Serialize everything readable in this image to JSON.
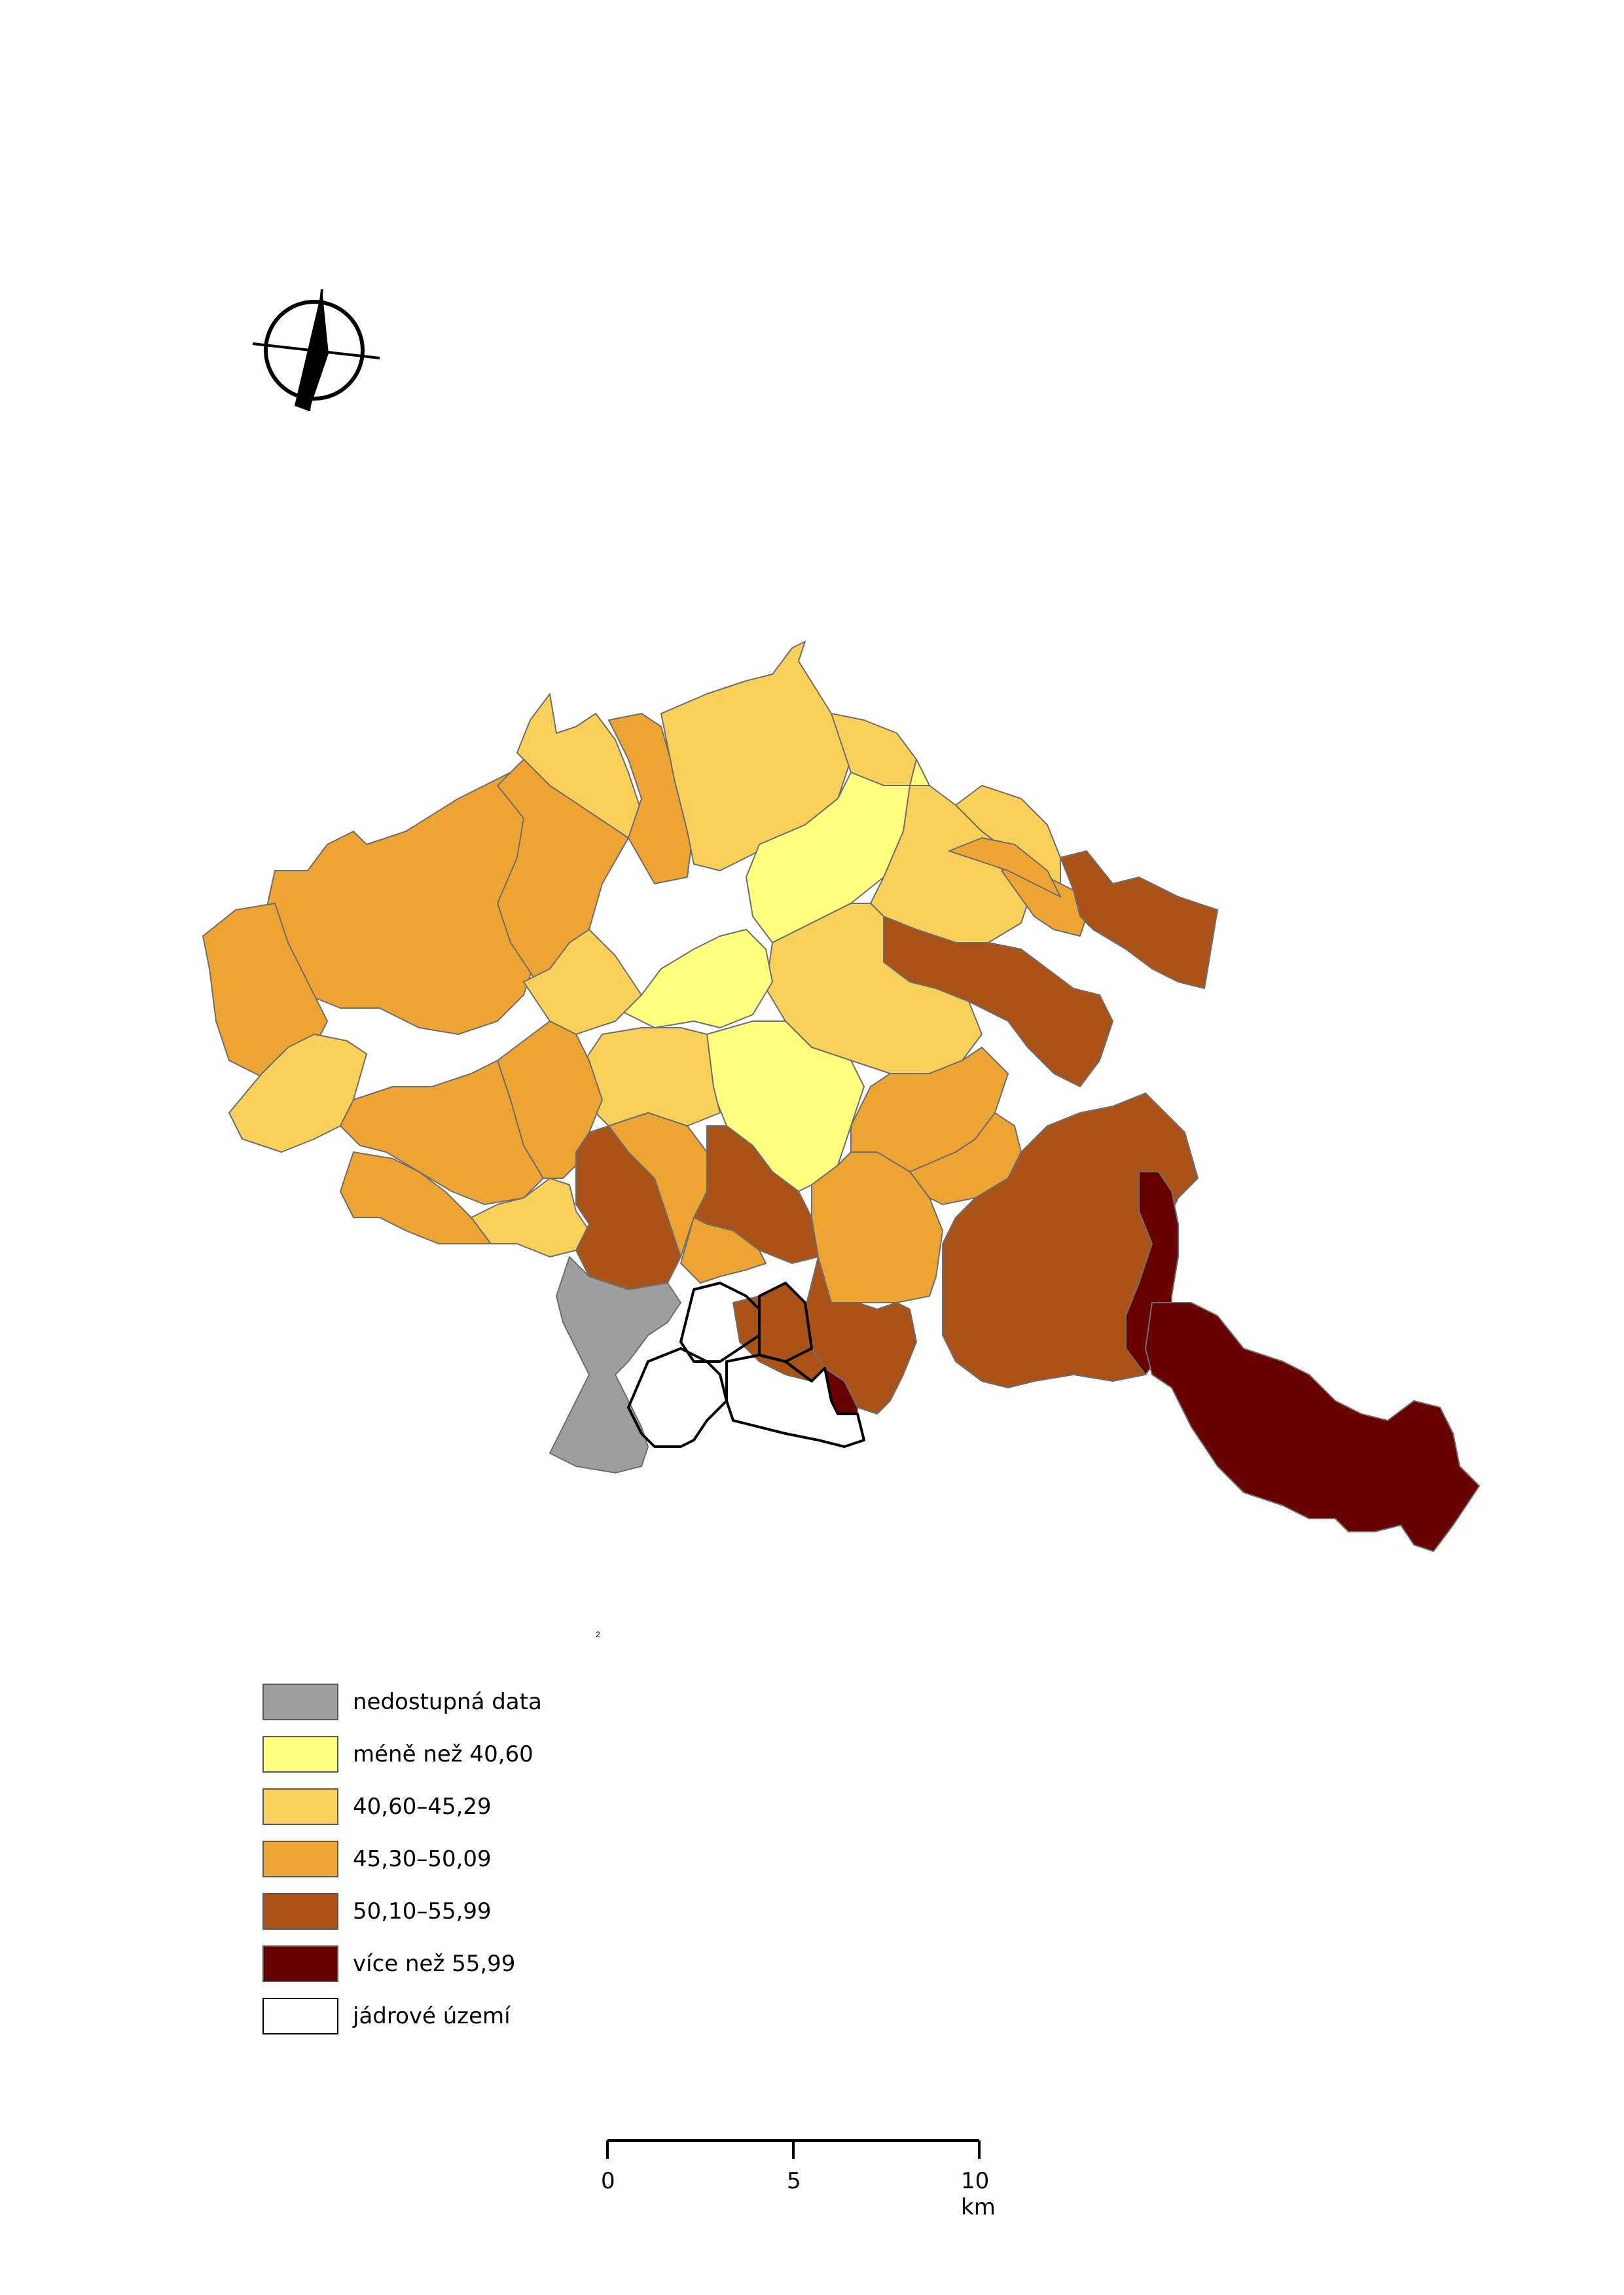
{
  "north_arrow": {
    "icon": "north-arrow-icon"
  },
  "map": {
    "footnote": "2",
    "colors": {
      "no_data": "#9e9e9e",
      "class1": "#ffff80",
      "class2": "#f9d05a",
      "class3": "#eea432",
      "class4": "#ab5219",
      "class5": "#680000",
      "border": "#6e6e6e",
      "core_border": "#000000"
    }
  },
  "legend": {
    "items": [
      {
        "label": "nedostupná data",
        "color": "#9e9e9e"
      },
      {
        "label": "méně než 40,60",
        "color": "#ffff80"
      },
      {
        "label": "40,60–45,29",
        "color": "#f9d05a"
      },
      {
        "label": "45,30–50,09",
        "color": "#eea432"
      },
      {
        "label": "50,10–55,99",
        "color": "#ab5219"
      },
      {
        "label": "více než 55,99",
        "color": "#680000"
      },
      {
        "label": "jádrové území",
        "color": "#ffffff"
      }
    ]
  },
  "scale_bar": {
    "labels": [
      "0",
      "5",
      "10 km"
    ]
  }
}
